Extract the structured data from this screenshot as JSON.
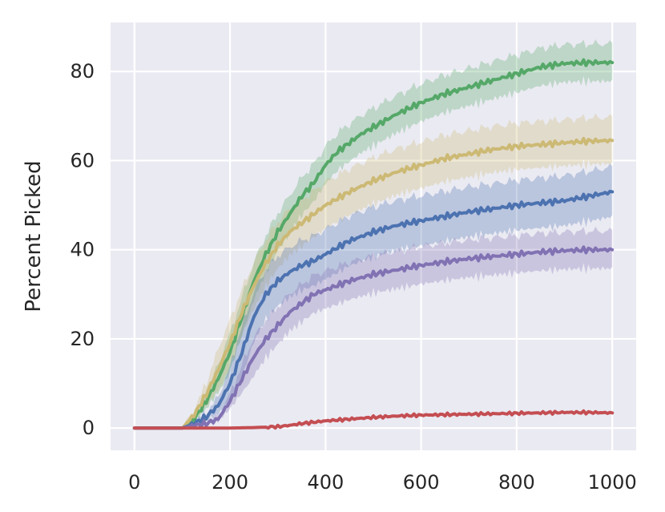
{
  "chart_data": {
    "type": "line",
    "title": "",
    "xlabel": "",
    "ylabel": "Percent Picked",
    "xlim": [
      -50,
      1050
    ],
    "ylim": [
      -5,
      91
    ],
    "xticks": [
      0,
      200,
      400,
      600,
      800,
      1000
    ],
    "yticks": [
      0,
      20,
      40,
      60,
      80
    ],
    "grid": true,
    "legend": "none",
    "background": "#eaeaf2",
    "series": [
      {
        "color": "#55a868",
        "band": 4.2,
        "points": [
          [
            0,
            0
          ],
          [
            100,
            0
          ],
          [
            125,
            2
          ],
          [
            150,
            6
          ],
          [
            175,
            11
          ],
          [
            200,
            17
          ],
          [
            225,
            25
          ],
          [
            250,
            33
          ],
          [
            275,
            39
          ],
          [
            300,
            44
          ],
          [
            325,
            48
          ],
          [
            350,
            52
          ],
          [
            375,
            55
          ],
          [
            400,
            59
          ],
          [
            425,
            62
          ],
          [
            450,
            64
          ],
          [
            475,
            66
          ],
          [
            500,
            67.5
          ],
          [
            550,
            70.5
          ],
          [
            600,
            73
          ],
          [
            650,
            75
          ],
          [
            700,
            76.5
          ],
          [
            750,
            78
          ],
          [
            800,
            79.5
          ],
          [
            850,
            81
          ],
          [
            900,
            81.8
          ],
          [
            950,
            82
          ],
          [
            1000,
            82
          ]
        ]
      },
      {
        "color": "#ccb974",
        "band": 5.2,
        "points": [
          [
            0,
            0
          ],
          [
            100,
            0
          ],
          [
            125,
            3
          ],
          [
            150,
            7.5
          ],
          [
            175,
            13
          ],
          [
            200,
            19
          ],
          [
            225,
            26
          ],
          [
            250,
            32
          ],
          [
            275,
            37
          ],
          [
            300,
            41
          ],
          [
            325,
            44
          ],
          [
            350,
            46
          ],
          [
            375,
            48
          ],
          [
            400,
            50
          ],
          [
            425,
            51.5
          ],
          [
            450,
            53
          ],
          [
            500,
            55.5
          ],
          [
            550,
            57.5
          ],
          [
            600,
            59
          ],
          [
            650,
            60.5
          ],
          [
            700,
            61.5
          ],
          [
            750,
            62.5
          ],
          [
            800,
            63.2
          ],
          [
            850,
            63.6
          ],
          [
            900,
            64
          ],
          [
            950,
            64.4
          ],
          [
            1000,
            64.5
          ]
        ]
      },
      {
        "color": "#4c72b0",
        "band": 5.6,
        "points": [
          [
            0,
            0
          ],
          [
            100,
            0
          ],
          [
            125,
            1
          ],
          [
            150,
            2.5
          ],
          [
            175,
            5
          ],
          [
            200,
            10
          ],
          [
            225,
            17
          ],
          [
            250,
            25
          ],
          [
            275,
            30
          ],
          [
            300,
            33
          ],
          [
            325,
            35
          ],
          [
            350,
            36.5
          ],
          [
            375,
            37.5
          ],
          [
            400,
            39
          ],
          [
            425,
            40.5
          ],
          [
            450,
            42
          ],
          [
            500,
            44
          ],
          [
            550,
            45.5
          ],
          [
            600,
            46.5
          ],
          [
            650,
            47.5
          ],
          [
            700,
            48.5
          ],
          [
            750,
            49.2
          ],
          [
            800,
            50
          ],
          [
            850,
            50.5
          ],
          [
            900,
            51
          ],
          [
            950,
            52
          ],
          [
            1000,
            53
          ]
        ]
      },
      {
        "color": "#8172b3",
        "band": 4.2,
        "points": [
          [
            0,
            0
          ],
          [
            100,
            0
          ],
          [
            125,
            0.5
          ],
          [
            150,
            1
          ],
          [
            175,
            2
          ],
          [
            200,
            6
          ],
          [
            225,
            11
          ],
          [
            250,
            16
          ],
          [
            275,
            20
          ],
          [
            300,
            23
          ],
          [
            325,
            26
          ],
          [
            350,
            28
          ],
          [
            375,
            30
          ],
          [
            400,
            31
          ],
          [
            425,
            32
          ],
          [
            450,
            33
          ],
          [
            500,
            34.5
          ],
          [
            550,
            35.5
          ],
          [
            600,
            36.5
          ],
          [
            650,
            37.3
          ],
          [
            700,
            38
          ],
          [
            750,
            38.5
          ],
          [
            800,
            39
          ],
          [
            850,
            39.5
          ],
          [
            900,
            39.8
          ],
          [
            950,
            40
          ],
          [
            1000,
            40
          ]
        ]
      },
      {
        "color": "#c44e52",
        "band": 0,
        "points": [
          [
            0,
            0
          ],
          [
            100,
            0
          ],
          [
            150,
            0
          ],
          [
            200,
            0
          ],
          [
            250,
            0.1
          ],
          [
            300,
            0.3
          ],
          [
            325,
            0.6
          ],
          [
            350,
            1
          ],
          [
            375,
            1.3
          ],
          [
            400,
            1.6
          ],
          [
            450,
            2
          ],
          [
            500,
            2.4
          ],
          [
            550,
            2.7
          ],
          [
            600,
            2.9
          ],
          [
            650,
            3
          ],
          [
            700,
            3.1
          ],
          [
            750,
            3.2
          ],
          [
            800,
            3.3
          ],
          [
            850,
            3.4
          ],
          [
            900,
            3.5
          ],
          [
            950,
            3.5
          ],
          [
            1000,
            3.4
          ]
        ]
      }
    ]
  }
}
